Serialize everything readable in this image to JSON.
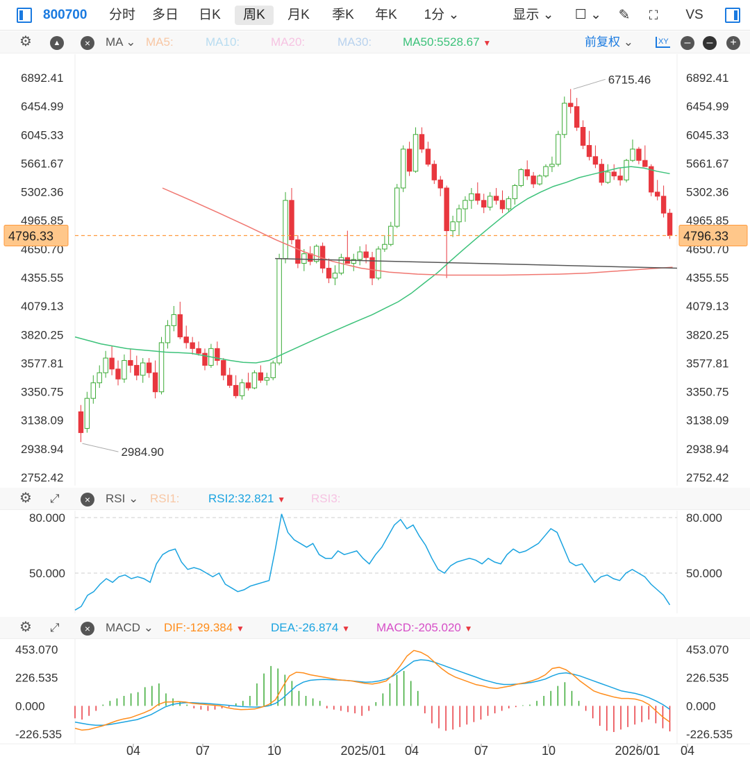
{
  "toolbar": {
    "code": "800700",
    "periods": [
      "分时",
      "多日",
      "日K",
      "周K",
      "月K",
      "季K",
      "年K",
      "1分 ⌄"
    ],
    "active_period": "周K",
    "display_label": "显示 ⌄",
    "checkbox_label": "☐ ⌄",
    "vs_label": "VS"
  },
  "ma_bar": {
    "name": "MA",
    "ma5": "MA5:",
    "ma10": "MA10:",
    "ma20": "MA20:",
    "ma30": "MA30:",
    "ma50": "MA50:5528.67",
    "adjust": "前复权",
    "xy_label": "XY"
  },
  "rsi_bar": {
    "name": "RSI",
    "rsi1": "RSI1:",
    "rsi2": "RSI2:32.821",
    "rsi3": "RSI3:"
  },
  "macd_bar": {
    "name": "MACD",
    "dif": "DIF:-129.384",
    "dea": "DEA:-26.874",
    "macd": "MACD:-205.020"
  },
  "colors": {
    "up": "#3aaa35",
    "down": "#e8373e",
    "ma50": "#3cc27a",
    "ma_long": "#f07670",
    "rsi": "#1aa3e0",
    "dif": "#ff8c1a",
    "dea": "#1aa3e0",
    "accent": "#1a7ae0",
    "price_tag": "#ffc78a"
  },
  "chart_data": [
    {
      "type": "candlestick",
      "title": "",
      "period": "weekly",
      "y_ticks": [
        "6892.41",
        "6454.99",
        "6045.33",
        "5661.67",
        "5302.36",
        "4965.85",
        "4650.70",
        "4355.55",
        "4079.13",
        "3820.25",
        "3577.81",
        "3350.75",
        "3138.09",
        "2938.94",
        "2752.42"
      ],
      "ylim": [
        2752.42,
        6892.41
      ],
      "scale": "log",
      "x_ticks": [
        "04",
        "07",
        "10",
        "2025/01",
        "04",
        "07",
        "10",
        "2026/01",
        "04"
      ],
      "current_price": "4796.33",
      "annotations": [
        {
          "label": "6715.46",
          "type": "high"
        },
        {
          "label": "2984.90",
          "type": "low"
        }
      ],
      "ohlc": [
        [
          3200,
          3250,
          2984.9,
          3050
        ],
        [
          3080,
          3350,
          3050,
          3300
        ],
        [
          3300,
          3480,
          3260,
          3420
        ],
        [
          3420,
          3560,
          3380,
          3500
        ],
        [
          3500,
          3680,
          3460,
          3620
        ],
        [
          3620,
          3720,
          3480,
          3530
        ],
        [
          3530,
          3600,
          3400,
          3450
        ],
        [
          3450,
          3650,
          3420,
          3600
        ],
        [
          3600,
          3700,
          3500,
          3560
        ],
        [
          3560,
          3640,
          3440,
          3480
        ],
        [
          3480,
          3620,
          3420,
          3580
        ],
        [
          3580,
          3620,
          3460,
          3500
        ],
        [
          3500,
          3600,
          3300,
          3350
        ],
        [
          3350,
          3800,
          3330,
          3750
        ],
        [
          3750,
          3950,
          3700,
          3900
        ],
        [
          3900,
          4080,
          3850,
          4000
        ],
        [
          4000,
          4120,
          3780,
          3800
        ],
        [
          3800,
          3900,
          3700,
          3750
        ],
        [
          3750,
          3800,
          3650,
          3700
        ],
        [
          3700,
          3760,
          3640,
          3660
        ],
        [
          3660,
          3700,
          3520,
          3560
        ],
        [
          3560,
          3740,
          3540,
          3700
        ],
        [
          3700,
          3760,
          3560,
          3600
        ],
        [
          3600,
          3620,
          3440,
          3480
        ],
        [
          3480,
          3540,
          3380,
          3400
        ],
        [
          3400,
          3480,
          3300,
          3320
        ],
        [
          3320,
          3450,
          3290,
          3420
        ],
        [
          3420,
          3500,
          3360,
          3380
        ],
        [
          3380,
          3520,
          3370,
          3500
        ],
        [
          3500,
          3560,
          3420,
          3440
        ],
        [
          3440,
          3500,
          3400,
          3460
        ],
        [
          3460,
          3600,
          3440,
          3580
        ],
        [
          3580,
          4600,
          3560,
          4550
        ],
        [
          4550,
          5300,
          4500,
          5200
        ],
        [
          5200,
          5350,
          4700,
          4750
        ],
        [
          4750,
          4800,
          4450,
          4500
        ],
        [
          4500,
          4650,
          4420,
          4600
        ],
        [
          4600,
          4680,
          4480,
          4520
        ],
        [
          4520,
          4700,
          4500,
          4680
        ],
        [
          4680,
          4720,
          4400,
          4450
        ],
        [
          4450,
          4550,
          4300,
          4350
        ],
        [
          4350,
          4480,
          4280,
          4400
        ],
        [
          4400,
          4600,
          4380,
          4560
        ],
        [
          4560,
          4850,
          4520,
          4500
        ],
        [
          4500,
          4600,
          4420,
          4540
        ],
        [
          4540,
          4680,
          4480,
          4620
        ],
        [
          4620,
          4700,
          4500,
          4560
        ],
        [
          4560,
          4620,
          4280,
          4350
        ],
        [
          4350,
          4680,
          4330,
          4650
        ],
        [
          4650,
          4800,
          4620,
          4700
        ],
        [
          4700,
          4950,
          4680,
          4900
        ],
        [
          4900,
          5400,
          4880,
          5350
        ],
        [
          5350,
          5900,
          5300,
          5850
        ],
        [
          5850,
          5950,
          5500,
          5560
        ],
        [
          5560,
          6150,
          5540,
          6050
        ],
        [
          6050,
          6150,
          5800,
          5850
        ],
        [
          5850,
          5950,
          5620,
          5650
        ],
        [
          5650,
          5700,
          5400,
          5450
        ],
        [
          5450,
          5500,
          5250,
          5350
        ],
        [
          5350,
          5380,
          4350,
          4850
        ],
        [
          4850,
          5020,
          4780,
          4950
        ],
        [
          4950,
          5150,
          4800,
          5100
        ],
        [
          5100,
          5250,
          4950,
          5200
        ],
        [
          5200,
          5350,
          5100,
          5280
        ],
        [
          5280,
          5420,
          5150,
          5200
        ],
        [
          5200,
          5280,
          5050,
          5120
        ],
        [
          5120,
          5300,
          5080,
          5250
        ],
        [
          5250,
          5350,
          5150,
          5200
        ],
        [
          5200,
          5320,
          5050,
          5100
        ],
        [
          5100,
          5250,
          5060,
          5220
        ],
        [
          5220,
          5400,
          5150,
          5380
        ],
        [
          5380,
          5600,
          5360,
          5580
        ],
        [
          5580,
          5700,
          5450,
          5500
        ],
        [
          5500,
          5550,
          5350,
          5400
        ],
        [
          5400,
          5520,
          5380,
          5500
        ],
        [
          5500,
          5650,
          5480,
          5620
        ],
        [
          5620,
          5750,
          5550,
          5650
        ],
        [
          5650,
          6100,
          5620,
          6050
        ],
        [
          6050,
          6600,
          6000,
          6500
        ],
        [
          6500,
          6715.46,
          6350,
          6450
        ],
        [
          6450,
          6580,
          6100,
          6150
        ],
        [
          6150,
          6250,
          5850,
          5900
        ],
        [
          5900,
          6100,
          5700,
          5750
        ],
        [
          5750,
          5900,
          5600,
          5650
        ],
        [
          5650,
          5720,
          5380,
          5420
        ],
        [
          5420,
          5650,
          5400,
          5550
        ],
        [
          5550,
          5650,
          5450,
          5500
        ],
        [
          5500,
          5600,
          5380,
          5450
        ],
        [
          5450,
          5720,
          5420,
          5700
        ],
        [
          5700,
          5980,
          5680,
          5850
        ],
        [
          5850,
          5880,
          5650,
          5700
        ],
        [
          5700,
          5900,
          5650,
          5620
        ],
        [
          5620,
          5650,
          5250,
          5300
        ],
        [
          5300,
          5450,
          5200,
          5250
        ],
        [
          5250,
          5380,
          5000,
          5050
        ],
        [
          5050,
          5100,
          4760,
          4796.33
        ]
      ],
      "ma50_approx": [
        3800,
        3770,
        3740,
        3720,
        3700,
        3690,
        3680,
        3670,
        3665,
        3660,
        3640,
        3620,
        3600,
        3585,
        3580,
        3600,
        3650,
        3700,
        3750,
        3800,
        3850,
        3900,
        3950,
        4000,
        4060,
        4120,
        4200,
        4300,
        4400,
        4520,
        4640,
        4760,
        4880,
        5000,
        5120,
        5220,
        5300,
        5370,
        5420,
        5480,
        5520,
        5560,
        5600,
        5620,
        5600,
        5560,
        5528.67
      ],
      "ma_long_approx": [
        5350,
        5200,
        5050,
        4900,
        4750,
        4620,
        4520,
        4450,
        4410,
        4390,
        4380,
        4380,
        4380,
        4385,
        4390,
        4400,
        4420,
        4440,
        4460
      ]
    },
    {
      "type": "line",
      "name": "RSI",
      "y_ticks": [
        "80.000",
        "50.000"
      ],
      "series": [
        {
          "name": "RSI2",
          "values": [
            30,
            32,
            38,
            40,
            44,
            47,
            45,
            48,
            49,
            47,
            48,
            47,
            45,
            55,
            60,
            62,
            63,
            56,
            52,
            53,
            52,
            50,
            48,
            50,
            44,
            42,
            40,
            41,
            43,
            44,
            45,
            46,
            63,
            82,
            72,
            68,
            66,
            64,
            66,
            60,
            58,
            58,
            62,
            60,
            61,
            62,
            58,
            55,
            60,
            64,
            70,
            76,
            79,
            74,
            76,
            70,
            65,
            58,
            52,
            50,
            54,
            56,
            57,
            58,
            57,
            55,
            58,
            56,
            55,
            60,
            63,
            61,
            62,
            64,
            66,
            70,
            74,
            72,
            64,
            56,
            54,
            55,
            50,
            45,
            48,
            49,
            47,
            46,
            50,
            52,
            50,
            48,
            44,
            41,
            38,
            32.821
          ]
        }
      ]
    },
    {
      "type": "bar+line",
      "name": "MACD",
      "y_ticks": [
        "453.070",
        "226.535",
        "0.000",
        "-226.535"
      ],
      "series": [
        {
          "name": "DIF",
          "values": [
            -180,
            -195,
            -190,
            -175,
            -160,
            -140,
            -120,
            -105,
            -95,
            -75,
            -55,
            -30,
            10,
            30,
            32,
            35,
            30,
            20,
            15,
            10,
            5,
            0,
            -15,
            -25,
            -30,
            -28,
            -25,
            -10,
            10,
            50,
            150,
            240,
            270,
            265,
            250,
            240,
            230,
            220,
            210,
            205,
            200,
            190,
            180,
            175,
            185,
            200,
            250,
            320,
            400,
            445,
            430,
            400,
            350,
            300,
            260,
            230,
            210,
            190,
            170,
            160,
            145,
            140,
            150,
            160,
            175,
            185,
            200,
            220,
            250,
            300,
            310,
            290,
            250,
            200,
            160,
            120,
            100,
            85,
            70,
            60,
            60,
            55,
            40,
            10,
            -40,
            -90,
            -129.384
          ]
        },
        {
          "name": "DEA",
          "values": [
            -130,
            -140,
            -150,
            -155,
            -155,
            -150,
            -140,
            -130,
            -120,
            -110,
            -90,
            -70,
            -40,
            -10,
            10,
            20,
            25,
            25,
            22,
            20,
            15,
            10,
            5,
            0,
            -5,
            -8,
            -10,
            -8,
            0,
            20,
            60,
            110,
            160,
            190,
            205,
            210,
            212,
            210,
            208,
            205,
            200,
            195,
            190,
            192,
            200,
            215,
            240,
            280,
            320,
            360,
            370,
            365,
            350,
            330,
            310,
            290,
            270,
            250,
            230,
            210,
            195,
            180,
            172,
            172,
            175,
            180,
            188,
            200,
            215,
            240,
            260,
            265,
            255,
            240,
            220,
            200,
            180,
            160,
            140,
            120,
            110,
            100,
            85,
            65,
            40,
            10,
            -26.874
          ]
        }
      ],
      "histogram": [
        -100,
        -110,
        -80,
        -40,
        10,
        40,
        60,
        80,
        100,
        110,
        150,
        160,
        180,
        100,
        60,
        30,
        10,
        -20,
        -30,
        -40,
        -30,
        -20,
        -10,
        20,
        40,
        80,
        180,
        260,
        320,
        300,
        250,
        200,
        120,
        80,
        60,
        40,
        -20,
        -30,
        -40,
        -50,
        -60,
        -80,
        -40,
        30,
        100,
        180,
        250,
        280,
        200,
        120,
        -60,
        -140,
        -180,
        -200,
        -190,
        -170,
        -150,
        -130,
        -110,
        -80,
        -60,
        -40,
        -20,
        -10,
        5,
        10,
        40,
        80,
        120,
        160,
        190,
        120,
        40,
        -40,
        -100,
        -160,
        -200,
        -210,
        -190,
        -170,
        -150,
        -130,
        -110,
        -140,
        -180,
        -205.02
      ]
    }
  ]
}
